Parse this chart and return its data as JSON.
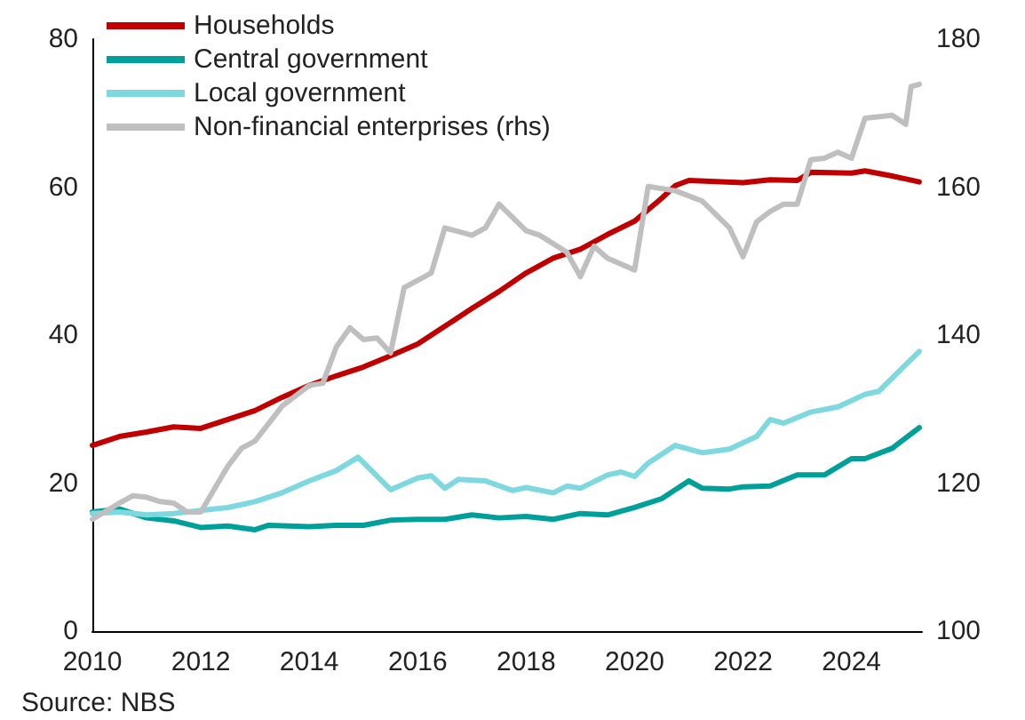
{
  "chart_data": {
    "type": "line",
    "xlim": [
      2010,
      2025.3
    ],
    "xticks": [
      2010,
      2012,
      2014,
      2016,
      2018,
      2020,
      2022,
      2024
    ],
    "ylim": [
      0,
      80
    ],
    "yticks": [
      0,
      20,
      40,
      60,
      80
    ],
    "y2lim": [
      100,
      180
    ],
    "y2ticks": [
      100,
      120,
      140,
      160,
      180
    ],
    "legend": "top left",
    "grid": false,
    "marker": "none",
    "line_style": "solid",
    "annotations": [
      "Source: NBS"
    ],
    "series": [
      {
        "name": "Households",
        "color": "#c00000",
        "x": [
          2010,
          2010.5,
          2011,
          2011.5,
          2012,
          2012.5,
          2013,
          2013.5,
          2014,
          2014.5,
          2015,
          2015.5,
          2016,
          2016.5,
          2017,
          2017.5,
          2018,
          2018.5,
          2019,
          2019.5,
          2020,
          2020.5,
          2020.75,
          2021,
          2022,
          2022.5,
          2023,
          2023.25,
          2024,
          2024.25,
          2024.75,
          2025.25
        ],
        "values": [
          25.1,
          26.3,
          26.9,
          27.6,
          27.4,
          28.6,
          29.8,
          31.6,
          33.2,
          34.5,
          35.7,
          37.2,
          38.8,
          41.2,
          43.6,
          45.9,
          48.4,
          50.4,
          51.6,
          53.6,
          55.4,
          58.5,
          60.2,
          60.9,
          60.6,
          61.0,
          60.9,
          62.0,
          61.9,
          62.2,
          61.5,
          60.7
        ]
      },
      {
        "name": "Central government",
        "color": "#00a09a",
        "x": [
          2010,
          2010.5,
          2011,
          2011.5,
          2012,
          2012.5,
          2013,
          2013.25,
          2014,
          2014.5,
          2015,
          2015.5,
          2016,
          2016.5,
          2017,
          2017.5,
          2018,
          2018.5,
          2019,
          2019.5,
          2020,
          2020.5,
          2021,
          2021.25,
          2021.75,
          2022,
          2022.5,
          2023,
          2023.5,
          2024,
          2024.25,
          2024.75,
          2025.25
        ],
        "values": [
          16.1,
          16.5,
          15.3,
          14.9,
          14.0,
          14.2,
          13.7,
          14.3,
          14.1,
          14.3,
          14.3,
          15.0,
          15.1,
          15.1,
          15.7,
          15.3,
          15.5,
          15.1,
          15.9,
          15.7,
          16.7,
          17.9,
          20.3,
          19.3,
          19.2,
          19.5,
          19.6,
          21.1,
          21.1,
          23.3,
          23.3,
          24.7,
          27.5
        ]
      },
      {
        "name": "Local government",
        "color": "#7dd8e0",
        "x": [
          2010,
          2010.5,
          2011,
          2011.5,
          2012,
          2012.5,
          2013,
          2013.5,
          2014,
          2014.5,
          2014.9,
          2015.5,
          2016,
          2016.25,
          2016.5,
          2016.75,
          2017.25,
          2017.75,
          2018,
          2018.5,
          2018.75,
          2019,
          2019.5,
          2019.75,
          2020,
          2020.25,
          2020.75,
          2021.25,
          2021.75,
          2022.25,
          2022.5,
          2022.75,
          2023.25,
          2023.75,
          2024.25,
          2024.5,
          2025.25
        ],
        "values": [
          15.9,
          16.1,
          15.7,
          15.9,
          16.3,
          16.7,
          17.5,
          18.7,
          20.3,
          21.7,
          23.5,
          19.1,
          20.7,
          21.0,
          19.3,
          20.5,
          20.3,
          19.0,
          19.4,
          18.7,
          19.6,
          19.3,
          21.1,
          21.5,
          20.9,
          22.7,
          25.1,
          24.1,
          24.6,
          26.3,
          28.6,
          28.1,
          29.6,
          30.3,
          32.0,
          32.4,
          37.8
        ]
      },
      {
        "name": "Non-financial enterprises (rhs)",
        "color": "#bfbfbf",
        "axis": "y2",
        "x": [
          2010,
          2010.5,
          2010.75,
          2011,
          2011.25,
          2011.5,
          2011.75,
          2012,
          2012.5,
          2012.75,
          2013,
          2013.5,
          2014,
          2014.25,
          2014.5,
          2014.75,
          2015,
          2015.25,
          2015.5,
          2015.75,
          2016.25,
          2016.5,
          2017,
          2017.25,
          2017.5,
          2018,
          2018.25,
          2018.75,
          2019,
          2019.25,
          2019.5,
          2020,
          2020.25,
          2020.75,
          2021.25,
          2021.75,
          2022,
          2022.25,
          2022.5,
          2022.75,
          2023,
          2023.25,
          2023.5,
          2023.75,
          2024,
          2024.25,
          2024.75,
          2025,
          2025.1,
          2025.25
        ],
        "values": [
          115.1,
          117.3,
          118.3,
          118.1,
          117.5,
          117.3,
          116.1,
          116.1,
          122.3,
          124.7,
          125.7,
          130.4,
          133.2,
          133.5,
          138.4,
          141.0,
          139.4,
          139.6,
          137.6,
          146.4,
          148.4,
          154.5,
          153.5,
          154.5,
          157.7,
          154.1,
          153.5,
          151.2,
          147.9,
          152.0,
          150.4,
          148.8,
          160.1,
          159.5,
          158.1,
          154.5,
          150.6,
          155.3,
          156.7,
          157.7,
          157.7,
          163.7,
          163.9,
          164.7,
          163.9,
          169.3,
          169.7,
          168.5,
          173.6,
          173.9
        ]
      }
    ]
  }
}
